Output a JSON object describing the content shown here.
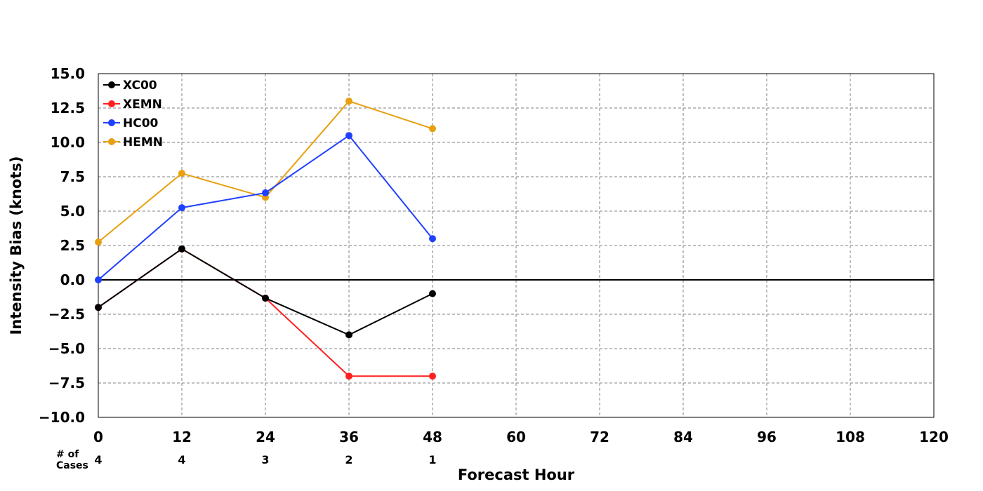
{
  "chart_data": {
    "type": "line",
    "title": "",
    "xlabel": "Forecast Hour",
    "ylabel": "Intensity Bias (knots)",
    "xlim": [
      0,
      120
    ],
    "ylim": [
      -10,
      15
    ],
    "x_ticks": [
      "0",
      "12",
      "24",
      "36",
      "48",
      "60",
      "72",
      "84",
      "96",
      "108",
      "120"
    ],
    "y_ticks": [
      "−10.0",
      "−7.5",
      "−5.0",
      "−2.5",
      "0.0",
      "2.5",
      "5.0",
      "7.5",
      "10.0",
      "12.5",
      "15.0"
    ],
    "grid": true,
    "legend_position": "top-left",
    "x": [
      0,
      12,
      24,
      36,
      48
    ],
    "series": [
      {
        "name": "XC00",
        "color": "#000000",
        "values": [
          -2.0,
          2.25,
          -1.33,
          -4.0,
          -1.0
        ]
      },
      {
        "name": "XEMN",
        "color": "#ff2020",
        "values": [
          -2.0,
          2.25,
          -1.33,
          -7.0,
          -7.0
        ]
      },
      {
        "name": "HC00",
        "color": "#2040ff",
        "values": [
          0.0,
          5.25,
          6.33,
          10.5,
          3.0
        ]
      },
      {
        "name": "HEMN",
        "color": "#e8a010",
        "values": [
          2.75,
          7.75,
          6.0,
          13.0,
          11.0
        ]
      }
    ],
    "cases": {
      "label_line1": "# of",
      "label_line2": "Cases",
      "x": [
        0,
        12,
        24,
        36,
        48
      ],
      "values": [
        "4",
        "4",
        "3",
        "2",
        "1"
      ]
    }
  }
}
